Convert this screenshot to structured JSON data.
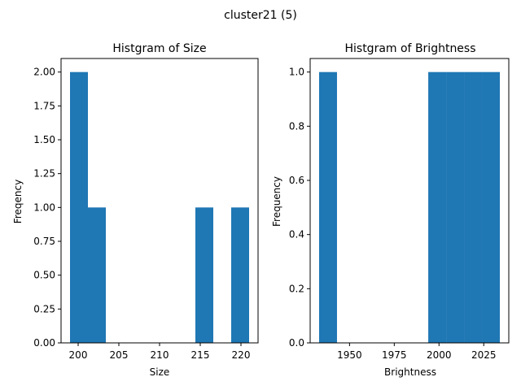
{
  "figure": {
    "suptitle": "cluster21 (5)"
  },
  "colors": {
    "bar": "#1f77b4",
    "axis": "#000000",
    "background": "#ffffff"
  },
  "chart_data": [
    {
      "type": "bar",
      "title": "Histgram of Size",
      "xlabel": "Size",
      "ylabel": "Freqency",
      "xlim": [
        197.9,
        222.1
      ],
      "ylim": [
        0,
        2.1
      ],
      "xticks": [
        200,
        205,
        210,
        215,
        220
      ],
      "xtick_labels": [
        "200",
        "205",
        "210",
        "215",
        "220"
      ],
      "yticks": [
        0,
        0.25,
        0.5,
        0.75,
        1.0,
        1.25,
        1.5,
        1.75,
        2.0
      ],
      "ytick_labels": [
        "0.00",
        "0.25",
        "0.50",
        "0.75",
        "1.00",
        "1.25",
        "1.50",
        "1.75",
        "2.00"
      ],
      "bins": [
        {
          "x0": 199.0,
          "x1": 201.2,
          "count": 2
        },
        {
          "x0": 201.2,
          "x1": 203.4,
          "count": 1
        },
        {
          "x0": 214.4,
          "x1": 216.6,
          "count": 1
        },
        {
          "x0": 218.8,
          "x1": 221.0,
          "count": 1
        }
      ]
    },
    {
      "type": "bar",
      "title": "Histgram of Brightness",
      "xlabel": "Brightness",
      "ylabel": "Frequency",
      "xlim": [
        1928,
        2039
      ],
      "ylim": [
        0,
        1.05
      ],
      "xticks": [
        1950,
        1975,
        2000,
        2025
      ],
      "xtick_labels": [
        "1950",
        "1975",
        "2000",
        "2025"
      ],
      "yticks": [
        0,
        0.2,
        0.4,
        0.6,
        0.8,
        1.0
      ],
      "ytick_labels": [
        "0.0",
        "0.2",
        "0.4",
        "0.6",
        "0.8",
        "1.0"
      ],
      "bins": [
        {
          "x0": 1933,
          "x1": 1943,
          "count": 1
        },
        {
          "x0": 1994,
          "x1": 2004,
          "count": 1
        },
        {
          "x0": 2004,
          "x1": 2014,
          "count": 1
        },
        {
          "x0": 2014,
          "x1": 2024,
          "count": 1
        },
        {
          "x0": 2024,
          "x1": 2034,
          "count": 1
        }
      ]
    }
  ]
}
